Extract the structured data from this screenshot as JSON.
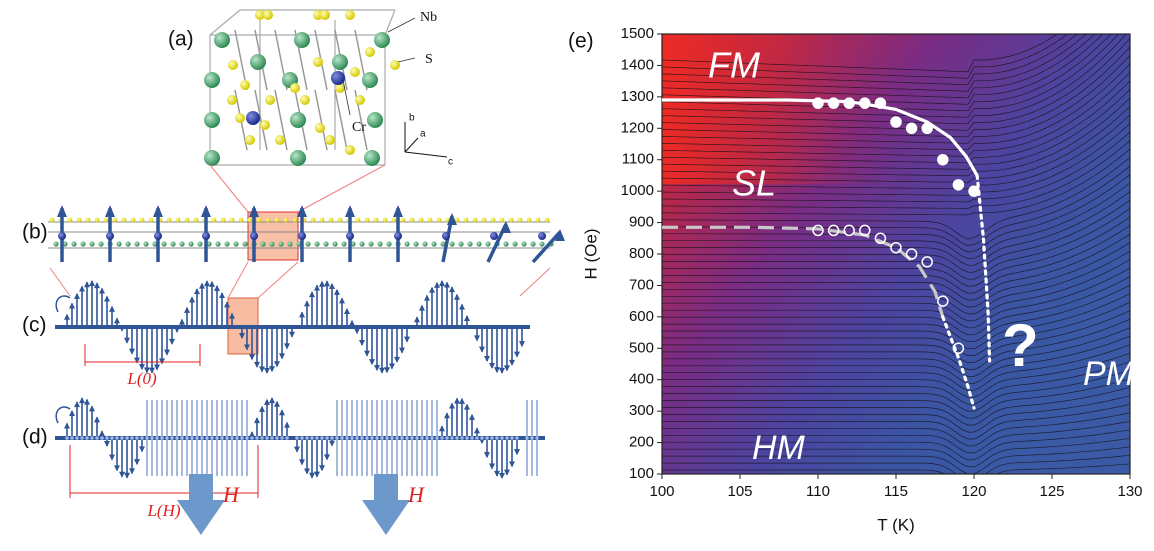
{
  "panels": {
    "a": {
      "label": "(a)",
      "atoms": [
        "Nb",
        "S",
        "Cr"
      ],
      "axes": [
        "b",
        "a",
        "c"
      ]
    },
    "b": {
      "label": "(b)"
    },
    "c": {
      "label": "(c)",
      "length": "L(0)"
    },
    "d": {
      "label": "(d)",
      "length": "L(H)",
      "field": [
        "H",
        "H"
      ]
    }
  },
  "chart_data": {
    "type": "scatter",
    "panel_label": "(e)",
    "xlabel": "T (K)",
    "ylabel": "H (Oe)",
    "xlim": [
      100,
      130
    ],
    "ylim": [
      100,
      1500
    ],
    "xticks": [
      100,
      105,
      110,
      115,
      120,
      125,
      130
    ],
    "yticks": [
      100,
      200,
      300,
      400,
      500,
      600,
      700,
      800,
      900,
      1000,
      1100,
      1200,
      1300,
      1400,
      1500
    ],
    "series": [
      {
        "color": "#ffffff",
        "marker": "filled",
        "x": [
          110,
          111,
          112,
          113,
          114,
          115,
          116,
          117,
          118,
          119,
          120
        ],
        "values": [
          1280,
          1280,
          1280,
          1280,
          1280,
          1220,
          1200,
          1200,
          1100,
          1020,
          1000
        ]
      },
      {
        "color": "#ffffff",
        "marker": "open",
        "x": [
          110,
          111,
          112,
          113,
          114,
          115,
          116,
          117,
          118,
          119
        ],
        "values": [
          875,
          875,
          875,
          875,
          850,
          820,
          800,
          775,
          650,
          500
        ]
      }
    ],
    "lines": [
      {
        "color": "#ffffff",
        "style": "solid",
        "x": [
          100,
          108,
          112,
          115,
          117,
          118.5,
          119.5,
          120.2
        ],
        "values": [
          1290,
          1290,
          1285,
          1260,
          1220,
          1170,
          1110,
          1050
        ]
      },
      {
        "color": "#ffffff",
        "style": "dotted",
        "x": [
          120.2,
          120.6,
          120.9,
          121
        ],
        "values": [
          1050,
          850,
          620,
          460
        ]
      },
      {
        "color": "#c8c8c8",
        "style": "dashed",
        "x": [
          100,
          106,
          110,
          113,
          115,
          116.5,
          117.5,
          118
        ],
        "values": [
          885,
          885,
          880,
          860,
          820,
          760,
          680,
          600
        ]
      },
      {
        "color": "#ffffff",
        "style": "dotted",
        "x": [
          118,
          119,
          119.6,
          120
        ],
        "values": [
          600,
          470,
          380,
          310
        ]
      }
    ],
    "annotations": [
      "FM",
      "SL",
      "HM",
      "PM",
      "?"
    ]
  }
}
